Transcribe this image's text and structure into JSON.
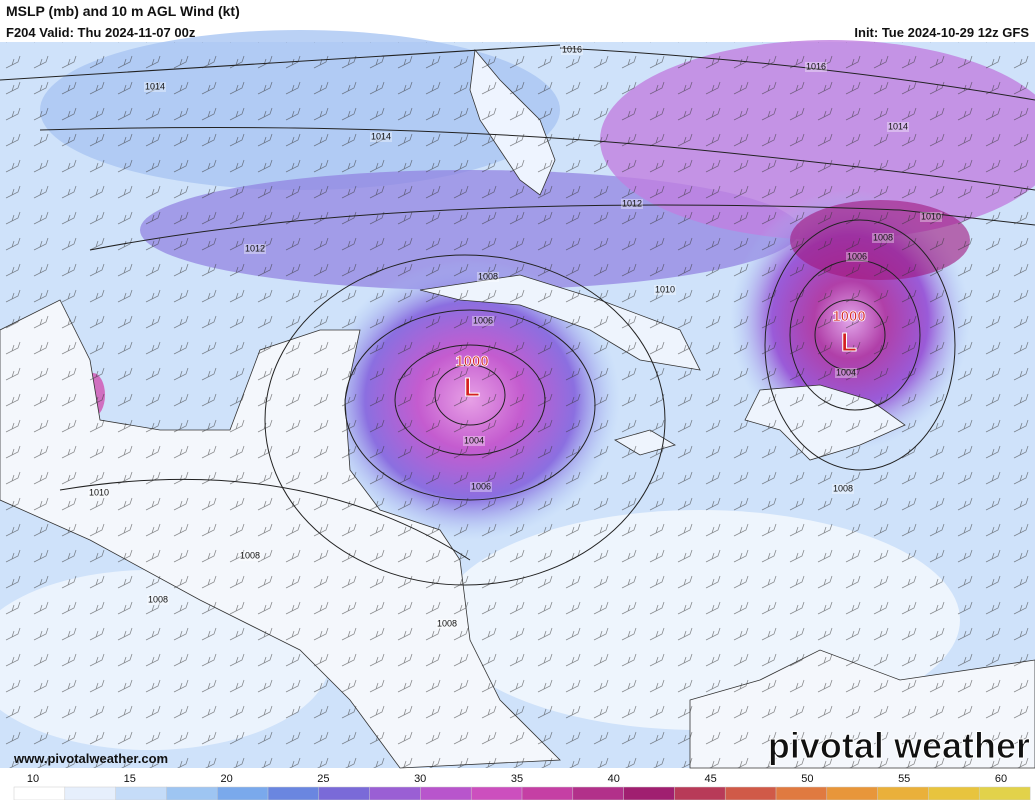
{
  "header": {
    "title": "MSLP (mb) and 10 m AGL Wind (kt)",
    "valid": "F204 Valid: Thu 2024-11-07 00z",
    "init": "Init: Tue 2024-10-29 12z GFS"
  },
  "isobar_labels": [
    "1016",
    "1016",
    "1014",
    "1014",
    "1014",
    "1012",
    "1012",
    "1010",
    "1010",
    "1010",
    "1008",
    "1008",
    "1008",
    "1008",
    "1008",
    "1008",
    "1006",
    "1006",
    "1006",
    "1004",
    "1004"
  ],
  "lows": [
    {
      "pressure": "1000",
      "symbol": "L"
    },
    {
      "pressure": "1000",
      "symbol": "L"
    }
  ],
  "footer": {
    "website": "www.pivotalweather.com",
    "logo": "pivotal weather"
  },
  "colorbar": {
    "labels": [
      10,
      15,
      20,
      25,
      30,
      35,
      40,
      45,
      50,
      55,
      60
    ]
  }
}
